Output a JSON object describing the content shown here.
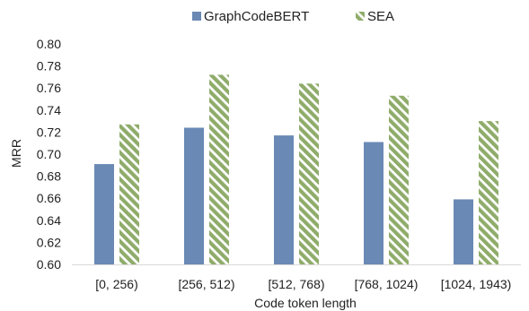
{
  "chart_data": {
    "type": "bar",
    "title": "",
    "xlabel": "Code token length",
    "ylabel": "MRR",
    "categories": [
      "[0, 256)",
      "[256, 512)",
      "[512, 768)",
      "[768, 1024)",
      "[1024, 1943)"
    ],
    "series": [
      {
        "name": "GraphCodeBERT",
        "values": [
          0.691,
          0.724,
          0.717,
          0.711,
          0.659
        ],
        "color": "#6a89b5",
        "pattern": "solid"
      },
      {
        "name": "SEA",
        "values": [
          0.727,
          0.772,
          0.764,
          0.753,
          0.73
        ],
        "color": "#8fac6a",
        "pattern": "diagonal-stripes"
      }
    ],
    "ylim": [
      0.6,
      0.8
    ],
    "yticks": [
      "0.60",
      "0.62",
      "0.64",
      "0.66",
      "0.68",
      "0.70",
      "0.72",
      "0.74",
      "0.76",
      "0.78",
      "0.80"
    ],
    "grid": false,
    "legend_position": "top-center"
  }
}
